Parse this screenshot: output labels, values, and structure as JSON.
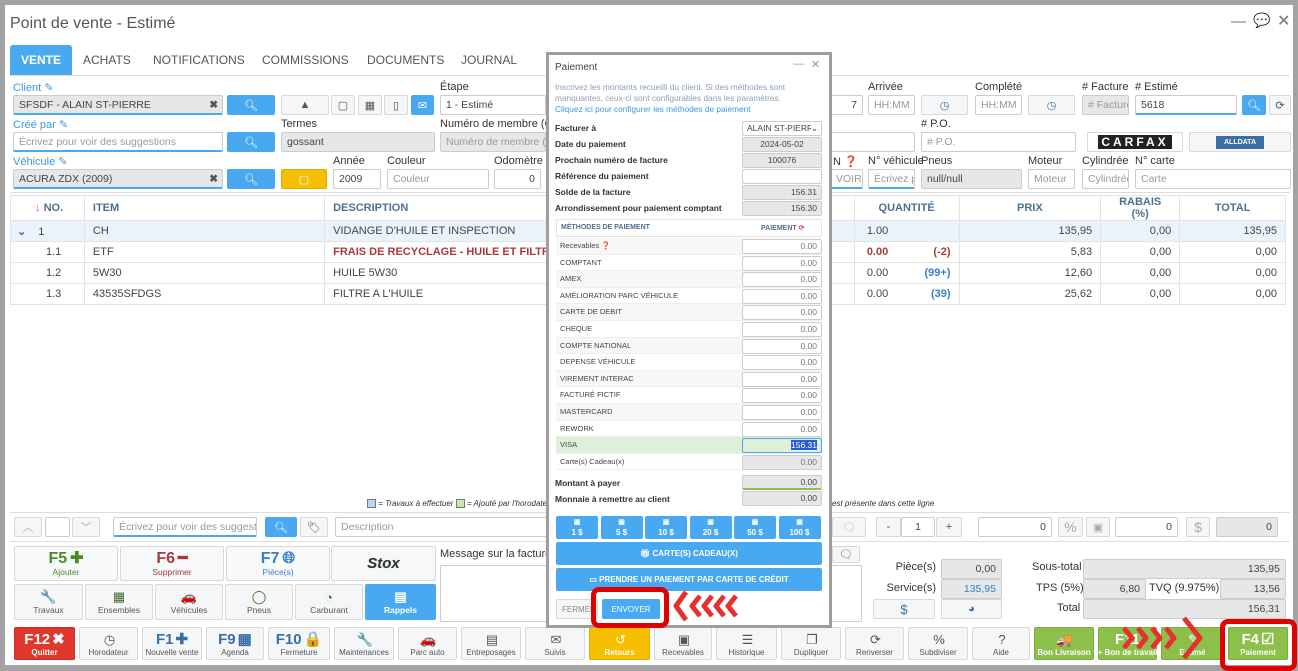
{
  "window": {
    "title": "Point de vente - Estimé"
  },
  "tabs": [
    "VENTE",
    "ACHATS",
    "NOTIFICATIONS",
    "COMMISSIONS",
    "DOCUMENTS",
    "JOURNAL"
  ],
  "form": {
    "client_label": "Client",
    "client_value": "SFSDF - ALAIN ST-PIERRE",
    "etape_label": "Étape",
    "etape_value": "1 - Estimé",
    "cree_par_label": "Créé par",
    "cree_par_placeholder": "Écrivez pour voir des suggestions",
    "termes_label": "Termes",
    "termes_value": "gossant",
    "membre_label": "Numéro de membre (Club)",
    "membre_placeholder": "Numéro de membre (Club)",
    "vehicule_label": "Véhicule",
    "vehicule_value": "ACURA ZDX (2009)",
    "annee_label": "Année",
    "annee_value": "2009",
    "couleur_label": "Couleur",
    "couleur_placeholder": "Couleur",
    "odometre_label": "Odomètre",
    "odometre_value": "0",
    "partial_value": "7",
    "arrivee_label": "Arrivée",
    "arrivee_placeholder": "HH:MM",
    "complete_label": "Complété",
    "complete_placeholder": "HH:MM",
    "facture_label": "# Facture",
    "facture_placeholder": "# Facture",
    "estime_label": "# Estimé",
    "estime_value": "5618",
    "po_label": "# P.O.",
    "po_placeholder": "# P.O.",
    "vin_label": "N",
    "vin_placeholder": "VOIR DI",
    "no_vehicule_label": "N° véhicule",
    "no_vehicule_placeholder": "Écrivez pc",
    "pneus_label": "Pneus",
    "pneus_value": "null/null",
    "moteur_label": "Moteur",
    "moteur_placeholder": "Moteur",
    "cylindree_label": "Cylindrée",
    "cylindree_placeholder": "Cylindrée",
    "carte_label": "N° carte",
    "carte_placeholder": "Carte",
    "carfax": "CARFAX",
    "alldata": "ALLDATA"
  },
  "table": {
    "headers": {
      "no": "NO.",
      "item": "ITEM",
      "description": "DESCRIPTION",
      "quantite": "QUANTITÉ",
      "prix": "PRIX",
      "rabais": "RABAIS (%)",
      "total": "TOTAL"
    },
    "rows": [
      {
        "no": "1",
        "item": "CH",
        "description": "VIDANGE D'HUILE ET INSPECTION",
        "qty": "1.00",
        "stock": "",
        "prix": "135,95",
        "rabais": "0,00",
        "total": "135,95"
      },
      {
        "no": "1.1",
        "item": "ETF",
        "description": "FRAIS DE RECYCLAGE - HUILE ET FILTRE",
        "qty": "0.00",
        "stock": "(-2)",
        "prix": "5,83",
        "rabais": "0,00",
        "total": "0,00"
      },
      {
        "no": "1.2",
        "item": "5W30",
        "description": "HUILE 5W30",
        "qty": "0.00",
        "stock": "(99+)",
        "prix": "12,60",
        "rabais": "0,00",
        "total": "0,00"
      },
      {
        "no": "1.3",
        "item": "43535SFDGS",
        "description": "FILTRE A L'HUILE",
        "qty": "0.00",
        "stock": "(39)",
        "prix": "25,62",
        "rabais": "0,00",
        "total": "0,00"
      }
    ]
  },
  "legend": {
    "travaux": "= Travaux à effectuer",
    "horodateur": "= Ajouté par l'horodateur",
    "tail": "est présente dans cette ligne"
  },
  "editbar": {
    "item_placeholder": "Écrivez pour voir des suggestions",
    "description_placeholder": "Description",
    "qty_minus": "-",
    "qty_value": "1",
    "qty_plus": "+",
    "discount_value": "0",
    "percent": "%",
    "amount_value": "0",
    "dollar": "$",
    "total_value": "0"
  },
  "function_keys": [
    {
      "key": "F5",
      "label": "Ajouter",
      "color": "#4d8a2a"
    },
    {
      "key": "F6",
      "label": "Supprimer",
      "color": "#a83a3a"
    },
    {
      "key": "F7",
      "label": "Pièce(s)",
      "color": "#3c7fc4"
    },
    {
      "key": "",
      "label": "Stox",
      "color": "#2a2a2a"
    }
  ],
  "shortcuts": [
    "Travaux",
    "Ensembles",
    "Véhicules",
    "Pneus",
    "Carburant",
    "Rappels"
  ],
  "message": {
    "label": "Message sur la facture"
  },
  "totals": {
    "pieces_label": "Pièce(s)",
    "pieces": "0,00",
    "services_label": "Service(s)",
    "services": "135,95",
    "soustotal_label": "Sous-total",
    "soustotal": "135,95",
    "tps_label": "TPS (5%)",
    "tps": "6,80",
    "tvq_label": "TVQ (9.975%)",
    "tvq": "13,56",
    "total_label": "Total",
    "total": "156,31",
    "dollar": "$"
  },
  "bottom_buttons": [
    {
      "key": "F12",
      "label": "Quitter",
      "icon": "✖",
      "style": "red"
    },
    {
      "key": "",
      "label": "Horodateur",
      "icon": "◷",
      "style": ""
    },
    {
      "key": "F1",
      "label": "Nouvelle vente",
      "icon": "✚",
      "style": ""
    },
    {
      "key": "F9",
      "label": "Agenda",
      "icon": "▦",
      "style": ""
    },
    {
      "key": "F10",
      "label": "Fermeture",
      "icon": "🔒",
      "style": ""
    },
    {
      "key": "",
      "label": "Maintenances",
      "icon": "🔧",
      "style": ""
    },
    {
      "key": "",
      "label": "Parc auto",
      "icon": "🚗",
      "style": ""
    },
    {
      "key": "",
      "label": "Entreposages",
      "icon": "▤",
      "style": ""
    },
    {
      "key": "",
      "label": "Suivis",
      "icon": "✉",
      "style": ""
    },
    {
      "key": "",
      "label": "Retours",
      "icon": "↺",
      "style": "yellow"
    },
    {
      "key": "",
      "label": "Recevables",
      "icon": "▣",
      "style": ""
    },
    {
      "key": "",
      "label": "Historique",
      "icon": "☰",
      "style": ""
    },
    {
      "key": "",
      "label": "Dupliquer",
      "icon": "❐",
      "style": ""
    },
    {
      "key": "",
      "label": "Renverser",
      "icon": "⟳",
      "style": ""
    },
    {
      "key": "",
      "label": "Subdiviser",
      "icon": "%",
      "style": ""
    },
    {
      "key": "",
      "label": "Aide",
      "icon": "?",
      "style": ""
    },
    {
      "key": "",
      "label": "Bon Livraison",
      "icon": "🚚",
      "style": "green"
    },
    {
      "key": "F11",
      "label": "+ Bon de travail",
      "icon": "",
      "style": "green"
    },
    {
      "key": "",
      "label": "Estimé",
      "icon": "✎",
      "style": "green"
    },
    {
      "key": "F4",
      "label": "Paiement",
      "icon": "☑",
      "style": "green"
    }
  ],
  "payment_modal": {
    "title": "Paiement",
    "info": "Inscrivez les montants recueilli du client. Si des méthodes sont manquantes, ceux-ci sont configurables dans les paramètres.",
    "config_link": "Cliquez ici pour configurer les méthodes de paiement",
    "facturer_a_label": "Facturer à",
    "facturer_a": "ALAIN ST-PIERRE",
    "date_label": "Date du paiement",
    "date": "2024-05-02",
    "prochain_label": "Prochain numéro de facture",
    "prochain": "100076",
    "reference_label": "Référence du paiement",
    "reference": "",
    "solde_label": "Solde de la facture",
    "solde": "156.31",
    "arrondi_label": "Arrondissement pour paiement comptant",
    "arrondi": "156.30",
    "methods_header": "MÉTHODES DE PAIEMENT",
    "payment_header": "PAIEMENT",
    "methods": [
      {
        "name": "Recevables",
        "value": "0.00"
      },
      {
        "name": "COMPTANT",
        "value": "0.00"
      },
      {
        "name": "AMEX",
        "value": "0.00"
      },
      {
        "name": "AMÉLIORATION PARC VÉHICULE",
        "value": "0.00"
      },
      {
        "name": "CARTE DE DEBIT",
        "value": "0.00"
      },
      {
        "name": "CHEQUE",
        "value": "0.00"
      },
      {
        "name": "COMPTE NATIONAL",
        "value": "0.00"
      },
      {
        "name": "DEPENSE VÉHICULE",
        "value": "0.00"
      },
      {
        "name": "VIREMENT INTERAC",
        "value": "0.00"
      },
      {
        "name": "FACTURÉ FICTIF",
        "value": "0.00"
      },
      {
        "name": "MASTERCARD",
        "value": "0.00"
      },
      {
        "name": "REWORK",
        "value": "0.00"
      },
      {
        "name": "VISA",
        "value": "156.31"
      },
      {
        "name": "Carte(s) Cadeau(x)",
        "value": "0.00"
      }
    ],
    "montant_label": "Montant à payer",
    "montant": "0.00",
    "monnaie_label": "Monnaie à remettre au client",
    "monnaie": "0.00",
    "bills": [
      "1 $",
      "5 $",
      "10 $",
      "20 $",
      "50 $",
      "100 $"
    ],
    "gift_card_button": "CARTE(S) CADEAU(X)",
    "credit_card_button": "PRENDRE UN PAIEMENT PAR CARTE DE CRÉDIT",
    "close_button": "FERMER",
    "send_button": "ENVOYER"
  },
  "colors": {
    "accent": "#48a9f0",
    "highlight": "#e00000",
    "success": "#8cc04b",
    "warning": "#f6c000",
    "danger": "#e0382c"
  }
}
